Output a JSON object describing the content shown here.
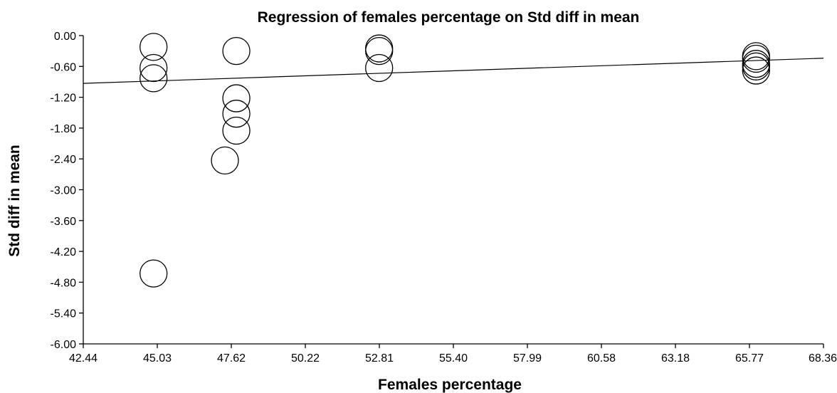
{
  "chart_data": {
    "type": "scatter",
    "title": "Regression of females percentage on Std diff in mean",
    "xlabel": "Females percentage",
    "ylabel": "Std diff in mean",
    "xlim": [
      42.44,
      68.36
    ],
    "ylim": [
      -6.0,
      0.0
    ],
    "x_ticks": [
      "42.44",
      "45.03",
      "47.62",
      "50.22",
      "52.81",
      "55.40",
      "57.99",
      "60.58",
      "63.18",
      "65.77",
      "68.36"
    ],
    "y_ticks": [
      "0.00",
      "-0.60",
      "-1.20",
      "-1.80",
      "-2.40",
      "-3.00",
      "-3.60",
      "-4.20",
      "-4.80",
      "-5.40",
      "-6.00"
    ],
    "grid": false,
    "legend": "none",
    "points": [
      {
        "x": 44.9,
        "y": -0.22
      },
      {
        "x": 44.9,
        "y": -0.63
      },
      {
        "x": 44.9,
        "y": -0.83
      },
      {
        "x": 44.9,
        "y": -4.63
      },
      {
        "x": 47.4,
        "y": -2.43
      },
      {
        "x": 47.8,
        "y": -0.3
      },
      {
        "x": 47.8,
        "y": -1.22
      },
      {
        "x": 47.8,
        "y": -1.52
      },
      {
        "x": 47.8,
        "y": -1.85
      },
      {
        "x": 52.8,
        "y": -0.25
      },
      {
        "x": 52.8,
        "y": -0.3
      },
      {
        "x": 52.8,
        "y": -0.63
      },
      {
        "x": 66.0,
        "y": -0.4
      },
      {
        "x": 66.0,
        "y": -0.45
      },
      {
        "x": 66.0,
        "y": -0.55
      },
      {
        "x": 66.0,
        "y": -0.6
      },
      {
        "x": 66.0,
        "y": -0.68
      }
    ],
    "regression_line": {
      "x": [
        42.44,
        68.36
      ],
      "y": [
        -0.93,
        -0.44
      ]
    }
  }
}
